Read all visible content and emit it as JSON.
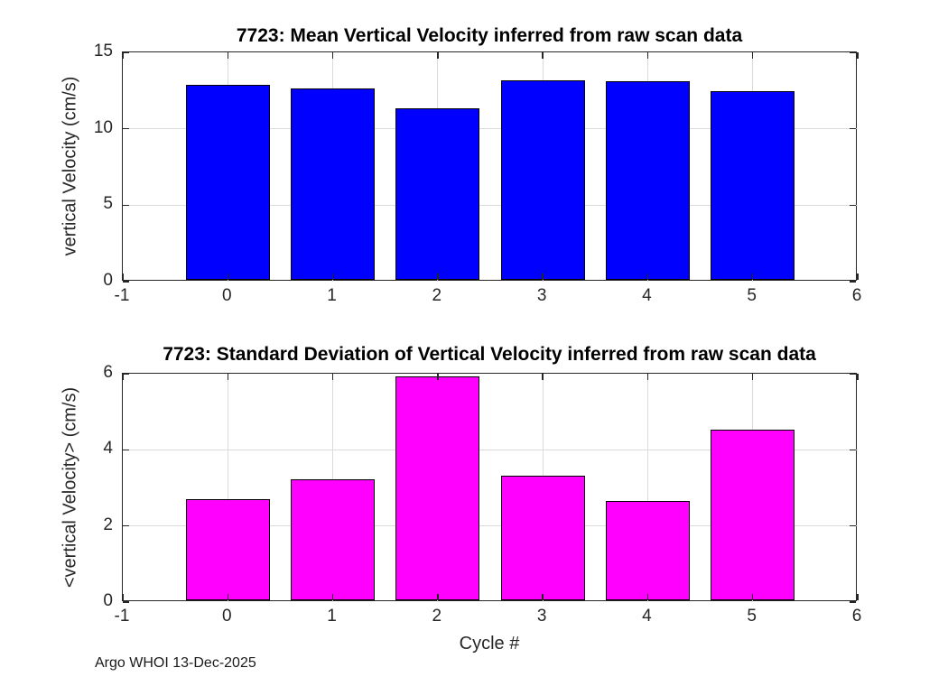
{
  "figure": {
    "background": "#ffffff",
    "footer_text": "Argo WHOI 13-Dec-2025"
  },
  "style": {
    "axis_color": "#262626",
    "grid_color": "#dbdbdb",
    "tick_label_color": "#262626",
    "title_color": "#000000",
    "bar_edge_color": "#000000",
    "mean_bar_color": "#0000ff",
    "std_bar_color": "#ff00ff"
  },
  "chart_data": [
    {
      "type": "bar",
      "title": "7723: Mean Vertical Velocity inferred from raw scan data",
      "xlabel": "",
      "ylabel": "vertical Velocity (cm/s)",
      "categories": [
        0,
        1,
        2,
        3,
        4,
        5
      ],
      "values": [
        12.74,
        12.55,
        11.21,
        13.03,
        12.97,
        12.33
      ],
      "bar_color": "#0000ff",
      "bar_edge_color": "#000000",
      "bar_width": 0.8,
      "xlim": [
        -1,
        6
      ],
      "ylim": [
        0,
        15
      ],
      "xticks": [
        -1,
        0,
        1,
        2,
        3,
        4,
        5,
        6
      ],
      "yticks": [
        0,
        5,
        10,
        15
      ],
      "grid": true,
      "legend": "none"
    },
    {
      "type": "bar",
      "title": "7723: Standard Deviation of Vertical Velocity inferred from raw scan data",
      "xlabel": "Cycle #",
      "ylabel": "<vertical Velocity> (cm/s)",
      "categories": [
        0,
        1,
        2,
        3,
        4,
        5
      ],
      "values": [
        2.66,
        3.19,
        5.88,
        3.27,
        2.6,
        4.48
      ],
      "bar_color": "#ff00ff",
      "bar_edge_color": "#000000",
      "bar_width": 0.8,
      "xlim": [
        -1,
        6
      ],
      "ylim": [
        0,
        6
      ],
      "xticks": [
        -1,
        0,
        1,
        2,
        3,
        4,
        5,
        6
      ],
      "yticks": [
        0,
        2,
        4,
        6
      ],
      "grid": true,
      "legend": "none"
    }
  ]
}
